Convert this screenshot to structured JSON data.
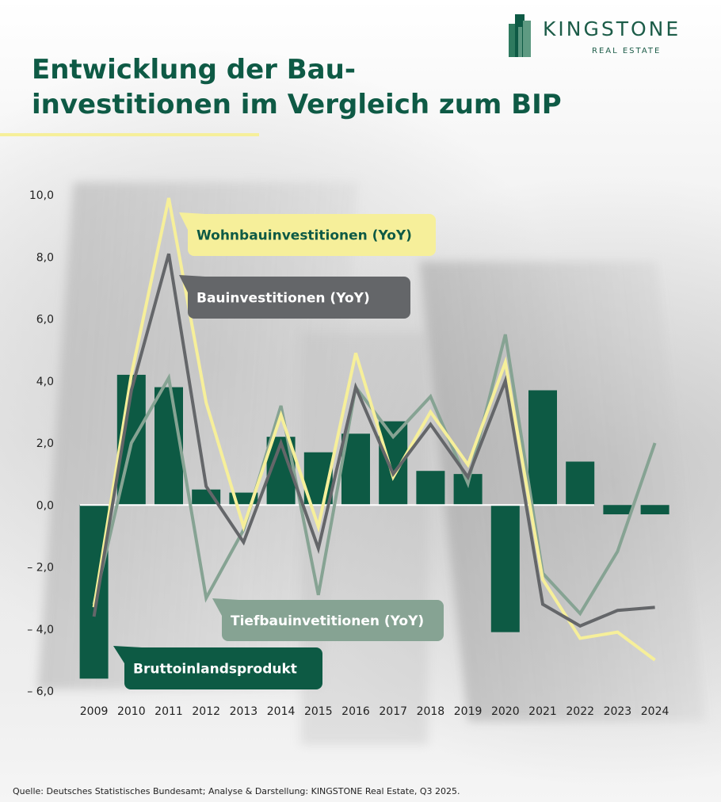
{
  "header": {
    "title_line1": "Entwicklung der Bau-",
    "title_line2": "investitionen im Vergleich zum BIP"
  },
  "logo": {
    "name": "KINGSTONE",
    "sub": "REAL ESTATE"
  },
  "source": "Quelle: Deutsches Statistisches Bundesamt; Analyse & Darstellung: KINGSTONE Real Estate, Q3 2025.",
  "colors": {
    "bip": "#0d5a44",
    "wohnbau": "#f6ef9a",
    "bau": "#646669",
    "tiefbau": "#86a393",
    "title": "#0e5a45"
  },
  "chart_data": {
    "type": "bar",
    "title": "Entwicklung der Bauinvestitionen im Vergleich zum BIP",
    "categories": [
      "2009",
      "2010",
      "2011",
      "2012",
      "2013",
      "2014",
      "2015",
      "2016",
      "2017",
      "2018",
      "2019",
      "2020",
      "2021",
      "2022",
      "2023",
      "2024"
    ],
    "ylim": [
      -6,
      10
    ],
    "yticks": [
      10,
      8,
      6,
      4,
      2,
      0,
      -2,
      -4,
      -6
    ],
    "ytick_labels": [
      "10,0",
      "8,0",
      "6,0",
      "4,0",
      "2,0",
      "0,0",
      "– 2,0",
      "– 4,0",
      "– 6,0"
    ],
    "grid": false,
    "series": [
      {
        "name": "Bruttoinlandsprodukt",
        "kind": "bar",
        "values": [
          -5.6,
          4.2,
          3.8,
          0.5,
          0.4,
          2.2,
          1.7,
          2.3,
          2.7,
          1.1,
          1.0,
          -4.1,
          3.7,
          1.4,
          -0.3,
          -0.3
        ]
      },
      {
        "name": "Wohnbauinvestitionen (YoY)",
        "kind": "line",
        "values": [
          -3.3,
          4.2,
          9.9,
          3.3,
          -0.7,
          2.9,
          -0.7,
          4.9,
          0.9,
          3.0,
          1.3,
          4.6,
          -2.4,
          -4.3,
          -4.1,
          -5.0
        ]
      },
      {
        "name": "Bauinvestitionen (YoY)",
        "kind": "line",
        "values": [
          -3.6,
          3.7,
          8.1,
          0.6,
          -1.2,
          2.0,
          -1.4,
          3.8,
          1.0,
          2.6,
          0.9,
          4.0,
          -3.2,
          -3.9,
          -3.4,
          -3.3
        ]
      },
      {
        "name": "Tiefbauinvetitionen (YoY)",
        "kind": "line",
        "values": [
          -3.2,
          2.0,
          4.1,
          -3.0,
          -0.8,
          3.2,
          -2.9,
          3.8,
          2.2,
          3.5,
          0.7,
          5.5,
          -2.2,
          -3.5,
          -1.5,
          2.0
        ]
      }
    ],
    "labels": {
      "wohnbau": "Wohnbauinvestitionen (YoY)",
      "bau": "Bauinvestitionen (YoY)",
      "tiefbau": "Tiefbauinvetitionen (YoY)",
      "bip": "Bruttoinlandsprodukt"
    }
  }
}
